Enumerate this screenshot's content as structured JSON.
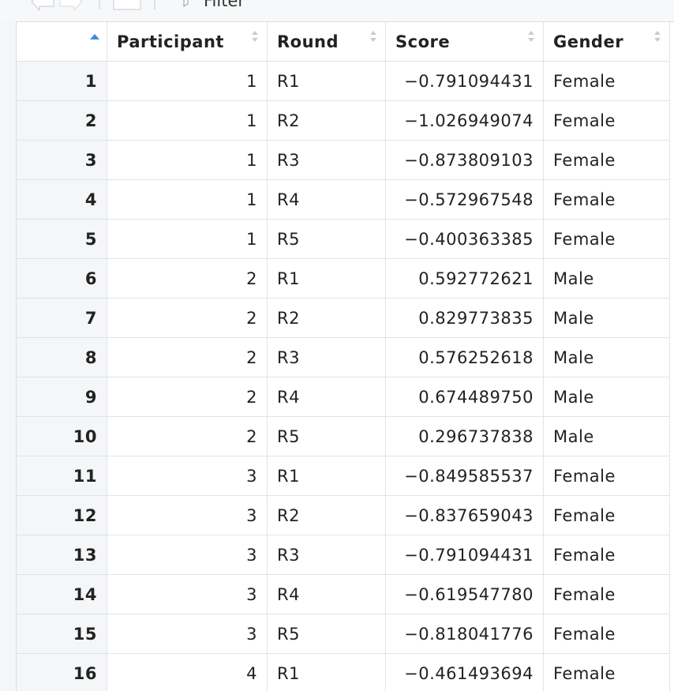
{
  "toolbar": {
    "filter_label": "Filter"
  },
  "table": {
    "columns": [
      "Participant",
      "Round",
      "Score",
      "Gender"
    ],
    "rows": [
      [
        1,
        1,
        "R1",
        "−0.791094431",
        "Female"
      ],
      [
        2,
        1,
        "R2",
        "−1.026949074",
        "Female"
      ],
      [
        3,
        1,
        "R3",
        "−0.873809103",
        "Female"
      ],
      [
        4,
        1,
        "R4",
        "−0.572967548",
        "Female"
      ],
      [
        5,
        1,
        "R5",
        "−0.400363385",
        "Female"
      ],
      [
        6,
        2,
        "R1",
        "0.592772621",
        "Male"
      ],
      [
        7,
        2,
        "R2",
        "0.829773835",
        "Male"
      ],
      [
        8,
        2,
        "R3",
        "0.576252618",
        "Male"
      ],
      [
        9,
        2,
        "R4",
        "0.674489750",
        "Male"
      ],
      [
        10,
        2,
        "R5",
        "0.296737838",
        "Male"
      ],
      [
        11,
        3,
        "R1",
        "−0.849585537",
        "Female"
      ],
      [
        12,
        3,
        "R2",
        "−0.837659043",
        "Female"
      ],
      [
        13,
        3,
        "R3",
        "−0.791094431",
        "Female"
      ],
      [
        14,
        3,
        "R4",
        "−0.619547780",
        "Female"
      ],
      [
        15,
        3,
        "R5",
        "−0.818041776",
        "Female"
      ],
      [
        16,
        4,
        "R1",
        "−0.461493694",
        "Female"
      ]
    ]
  }
}
